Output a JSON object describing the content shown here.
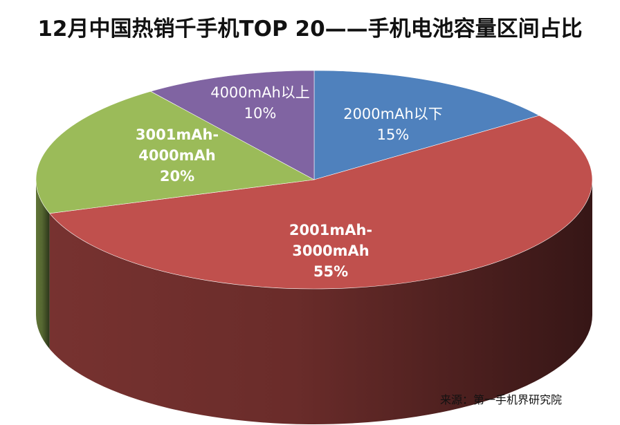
{
  "chart_data": {
    "type": "pie",
    "title": "12月中国热销千手机TOP 20——手机电池容量区间占比",
    "slices": [
      {
        "label": "2000mAh以下",
        "value": 15,
        "value_label": "15%",
        "color": "#4F81BD",
        "label_color": "#ffffff",
        "bold": false
      },
      {
        "label": "2001mAh-3000mAh",
        "value": 55,
        "value_label": "55%",
        "color": "#C0504D",
        "label_color": "#ffffff",
        "bold": true
      },
      {
        "label": "3001mAh-4000mAh",
        "value": 20,
        "value_label": "20%",
        "color": "#9BBB59",
        "label_color": "#ffffff",
        "bold": true
      },
      {
        "label": "4000mAh以上",
        "value": 10,
        "value_label": "10%",
        "color": "#8064A2",
        "label_color": "#ffffff",
        "bold": false
      }
    ]
  },
  "source": "来源：第一手机界研究院"
}
